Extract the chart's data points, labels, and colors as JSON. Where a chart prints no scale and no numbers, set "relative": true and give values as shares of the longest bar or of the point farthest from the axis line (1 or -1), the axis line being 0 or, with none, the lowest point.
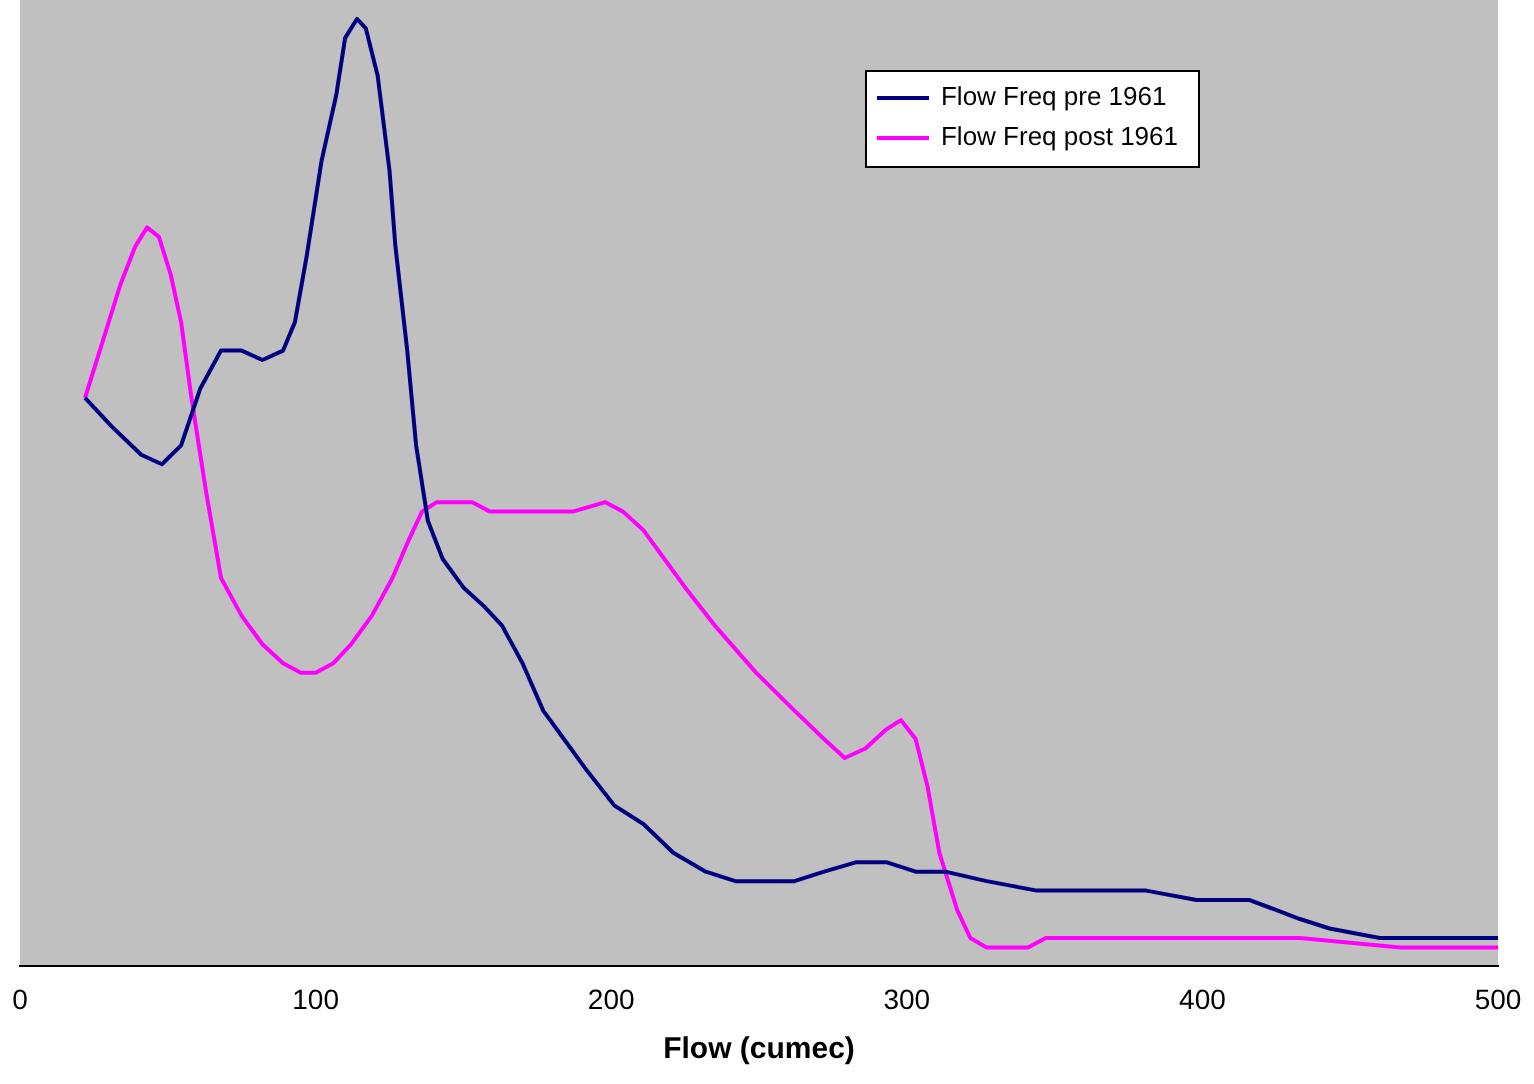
{
  "chart_data": {
    "type": "line",
    "xlabel": "Flow (cumec)",
    "relative": true,
    "xlim": [
      0,
      500
    ],
    "xticks": [
      0,
      100,
      200,
      300,
      400,
      500
    ],
    "grid": false,
    "legend": "top right",
    "marker": "none",
    "line_style": "solid",
    "series": [
      {
        "name": "Flow Freq pre 1961",
        "color": "#000080",
        "x": [
          22,
          31,
          41,
          48,
          54.5,
          61,
          68,
          75,
          82,
          89,
          93,
          97,
          102,
          107,
          110,
          114,
          117,
          121,
          125,
          127,
          131,
          134,
          138,
          143,
          150,
          157,
          163,
          170,
          177,
          184,
          191,
          201,
          211,
          221,
          232,
          242,
          252,
          262,
          272,
          283,
          293,
          303,
          313,
          327,
          344,
          364,
          381,
          398,
          416,
          433,
          443,
          460,
          480,
          500
        ],
        "values": [
          0.6,
          0.57,
          0.54,
          0.53,
          0.55,
          0.61,
          0.65,
          0.65,
          0.64,
          0.65,
          0.68,
          0.75,
          0.85,
          0.92,
          0.98,
          1,
          0.99,
          0.94,
          0.84,
          0.76,
          0.65,
          0.55,
          0.47,
          0.43,
          0.4,
          0.38,
          0.36,
          0.32,
          0.27,
          0.24,
          0.21,
          0.17,
          0.15,
          0.12,
          0.1,
          0.09,
          0.09,
          0.09,
          0.1,
          0.11,
          0.11,
          0.1,
          0.1,
          0.09,
          0.08,
          0.08,
          0.08,
          0.07,
          0.07,
          0.05,
          0.04,
          0.03,
          0.03,
          0.03
        ]
      },
      {
        "name": "Flow Freq post 1961",
        "color": "#ff00ff",
        "x": [
          22,
          27,
          34,
          39,
          43,
          47,
          51,
          54.5,
          58,
          63,
          68,
          75,
          82,
          89,
          95,
          100,
          106,
          112,
          119,
          126,
          131.5,
          136,
          141,
          146,
          153,
          159,
          167,
          177,
          187,
          198,
          204,
          211,
          218,
          225,
          235,
          249,
          262,
          272,
          279,
          286,
          293,
          298,
          303,
          307,
          311,
          317,
          321.5,
          327,
          334,
          341,
          347,
          364,
          398,
          433,
          467,
          484,
          500
        ],
        "values": [
          0.6,
          0.65,
          0.72,
          0.76,
          0.78,
          0.77,
          0.73,
          0.68,
          0.6,
          0.5,
          0.41,
          0.37,
          0.34,
          0.32,
          0.31,
          0.31,
          0.32,
          0.34,
          0.37,
          0.41,
          0.45,
          0.48,
          0.49,
          0.49,
          0.49,
          0.48,
          0.48,
          0.48,
          0.48,
          0.49,
          0.48,
          0.46,
          0.43,
          0.4,
          0.36,
          0.31,
          0.27,
          0.24,
          0.22,
          0.23,
          0.25,
          0.26,
          0.24,
          0.19,
          0.12,
          0.06,
          0.03,
          0.02,
          0.02,
          0.02,
          0.03,
          0.03,
          0.03,
          0.03,
          0.02,
          0.02,
          0.02
        ]
      }
    ]
  }
}
